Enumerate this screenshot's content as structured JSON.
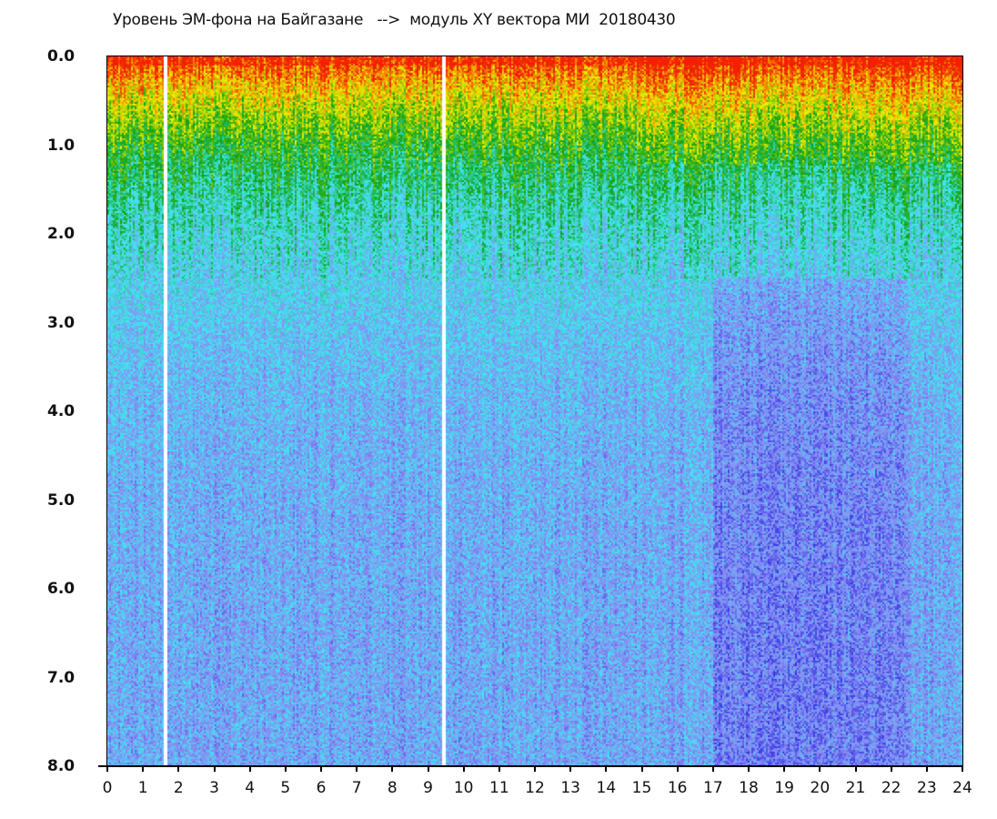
{
  "chart_data": {
    "type": "heatmap",
    "title": "Уровень ЭМ-фона на Байгазане   -->  модуль XY вектора МИ  20180430",
    "xlabel": "",
    "ylabel": "",
    "xlim": [
      0,
      24
    ],
    "ylim": [
      8.0,
      0.0
    ],
    "x_ticks": [
      "0",
      "1",
      "2",
      "3",
      "4",
      "5",
      "6",
      "7",
      "8",
      "9",
      "10",
      "11",
      "12",
      "13",
      "14",
      "15",
      "16",
      "17",
      "18",
      "19",
      "20",
      "21",
      "22",
      "23",
      "24"
    ],
    "y_ticks": [
      "0.0",
      "1.0",
      "2.0",
      "3.0",
      "4.0",
      "5.0",
      "6.0",
      "7.0",
      "8.0"
    ],
    "colorscale": [
      "#1010e0",
      "#8a8af2",
      "#40e8f0",
      "#10a010",
      "#f0f000",
      "#f02000"
    ],
    "gaps_x": [
      1.6,
      9.4
    ],
    "grid": false,
    "legend": "none"
  }
}
